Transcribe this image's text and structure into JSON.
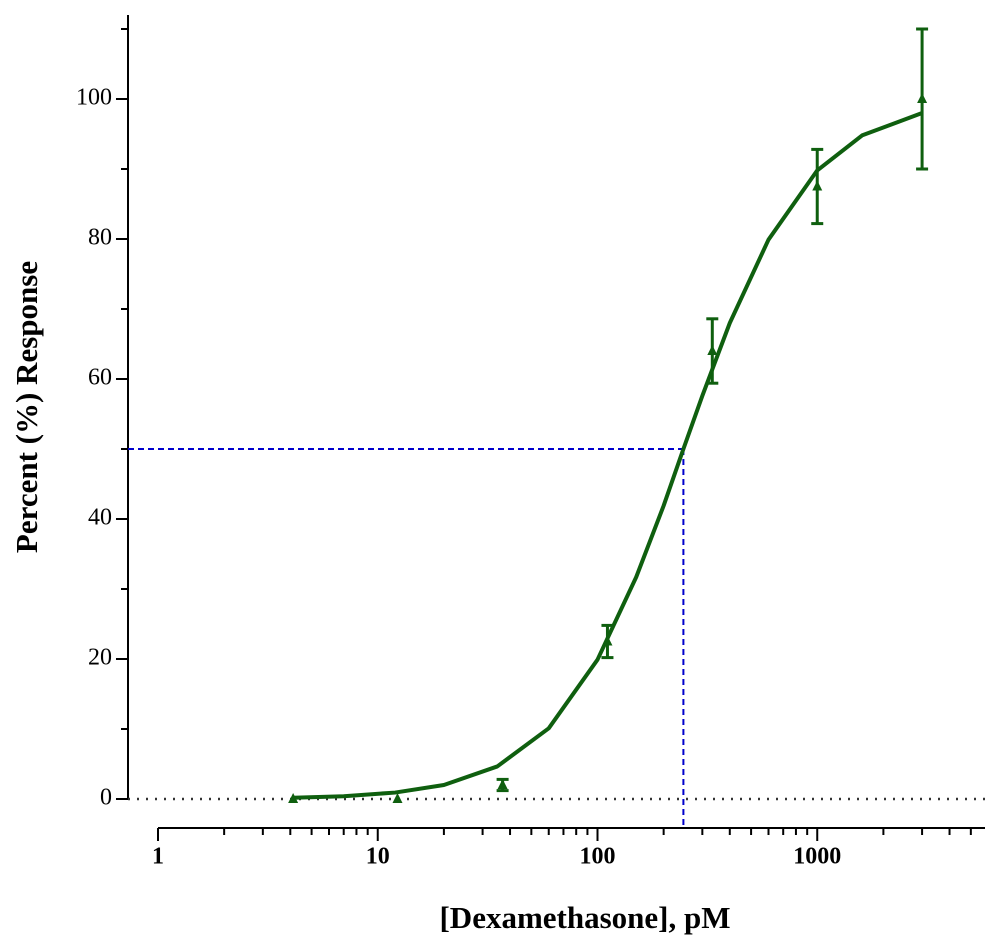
{
  "chart_data": {
    "type": "scatter",
    "xlabel": "[Dexamethasone], pM",
    "ylabel": "Percent (%) Response",
    "xscale": "log",
    "xlim": [
      1,
      5800
    ],
    "xticks": [
      1,
      10,
      100,
      1000
    ],
    "xminor": [
      2,
      3,
      4,
      5,
      6,
      7,
      8,
      9,
      20,
      30,
      40,
      50,
      60,
      70,
      80,
      90,
      200,
      300,
      400,
      500,
      600,
      700,
      800,
      900,
      2000,
      3000,
      4000,
      5000
    ],
    "ylim": [
      0,
      112
    ],
    "yticks": [
      0,
      20,
      40,
      60,
      80,
      100
    ],
    "yminor": [
      10,
      30,
      50,
      70,
      90,
      110
    ],
    "series": [
      {
        "color": "#0f5f0f",
        "x": [
          4.12,
          12.3,
          37,
          111,
          333,
          1000,
          3000
        ],
        "values": [
          0,
          0,
          2,
          22.5,
          64,
          87.5,
          100
        ],
        "errors": [
          0,
          0,
          0.8,
          2.3,
          4.6,
          5.3,
          10
        ]
      }
    ],
    "fit": {
      "color": "#0f5f0f",
      "x": [
        4.12,
        7,
        12,
        20,
        35,
        60,
        100,
        150,
        200,
        246,
        300,
        400,
        600,
        1000,
        1600,
        3000
      ],
      "values": [
        0.18,
        0.4,
        0.92,
        2.0,
        4.65,
        10.1,
        19.9,
        31.7,
        41.9,
        50,
        57.6,
        68.0,
        79.9,
        89.8,
        94.8,
        98.0
      ]
    },
    "ec50_guide": {
      "x": 246,
      "y": 50,
      "color": "#0000cc"
    },
    "baseline": 0
  }
}
